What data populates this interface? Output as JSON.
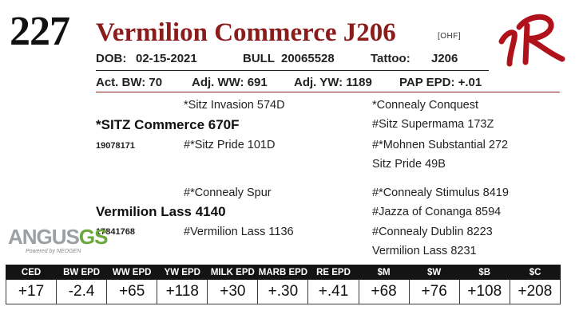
{
  "lot": "227",
  "name": "Vermilion Commerce J206",
  "brand_tag": "[OHF]",
  "dob_label": "DOB:",
  "dob": "02-15-2021",
  "sex": "BULL",
  "reg_no": "20065528",
  "tattoo_label": "Tattoo:",
  "tattoo": "J206",
  "act_bw": "Act. BW: 70",
  "adj_ww": "Adj. WW: 691",
  "adj_yw": "Adj. YW: 1189",
  "pap_epd": "PAP EPD: +.01",
  "pedigree": {
    "sire": "*SITZ Commerce 670F",
    "sire_reg": "19078171",
    "sire_sire": "*Sitz Invasion 574D",
    "sire_dam": "#*Sitz Pride 101D",
    "sss": "*Connealy Conquest",
    "ssd": "#Sitz Supermama 173Z",
    "sds": "#*Mohnen Substantial 272",
    "sdd": "Sitz Pride 49B",
    "dam": "Vermilion Lass 4140",
    "dam_reg": "17841768",
    "dam_sire": "#*Connealy Spur",
    "dam_dam": "#Vermilion Lass 1136",
    "dss": "#*Connealy Stimulus 8419",
    "dsd": "#Jazza of Conanga 8594",
    "dds": "#Connealy Dublin 8223",
    "ddd": "Vermilion Lass 8231"
  },
  "angus_logo": {
    "main": "ANGUS",
    "gs": "GS",
    "powered": "Powered by NEOGEN"
  },
  "epd_headers": [
    "CED",
    "BW EPD",
    "WW EPD",
    "YW EPD",
    "MILK EPD",
    "MARB EPD",
    "RE EPD",
    "$M",
    "$W",
    "$B",
    "$C"
  ],
  "epd_values": [
    "+17",
    "-2.4",
    "+65",
    "+118",
    "+30",
    "+.30",
    "+.41",
    "+68",
    "+76",
    "+108",
    "+208"
  ],
  "colors": {
    "accent": "#8b1c1c",
    "header_bg": "#141414",
    "angus_gray": "#9aa0a4",
    "gs_green": "#6aa83b"
  }
}
